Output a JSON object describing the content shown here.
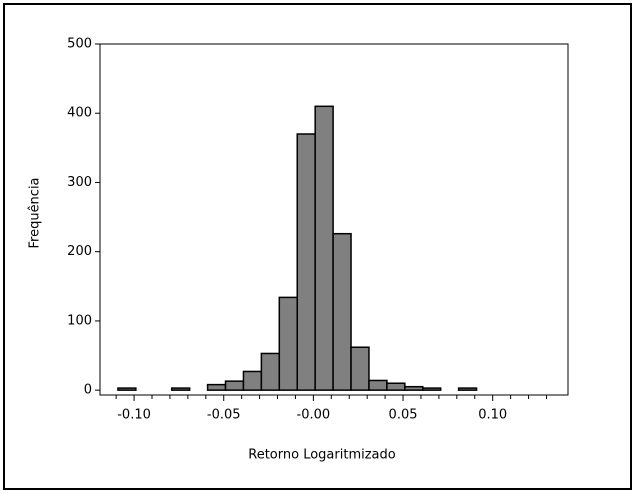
{
  "chart_data": {
    "type": "histogram",
    "xlabel": "Retorno Logaritmizado",
    "ylabel": "Frequência",
    "bins": [
      -0.109,
      -0.099,
      -0.089,
      -0.079,
      -0.069,
      -0.059,
      -0.049,
      -0.039,
      -0.029,
      -0.019,
      -0.009,
      0.001,
      0.011,
      0.021,
      0.031,
      0.041,
      0.051,
      0.061,
      0.071,
      0.081,
      0.091
    ],
    "values": [
      3,
      0,
      0,
      3,
      0,
      8,
      13,
      27,
      53,
      134,
      370,
      410,
      226,
      62,
      14,
      10,
      5,
      3,
      0,
      3
    ],
    "color": "#808080",
    "xlim": [
      -0.119,
      0.142
    ],
    "ylim": [
      -7,
      500
    ],
    "xticks": [
      {
        "value": -0.1,
        "label": "-0.10"
      },
      {
        "value": -0.05,
        "label": "-0.05"
      },
      {
        "value": 0,
        "label": "-0.00"
      },
      {
        "value": 0.05,
        "label": "0.05"
      },
      {
        "value": 0.1,
        "label": "0.10"
      }
    ],
    "xticks_minor": [
      -0.11,
      -0.09,
      -0.08,
      -0.07,
      -0.06,
      -0.04,
      -0.03,
      -0.02,
      -0.01,
      0.01,
      0.02,
      0.03,
      0.04,
      0.06,
      0.07,
      0.08,
      0.09,
      0.11,
      0.12,
      0.13
    ],
    "yticks": [
      0,
      100,
      200,
      300,
      400,
      500
    ]
  }
}
